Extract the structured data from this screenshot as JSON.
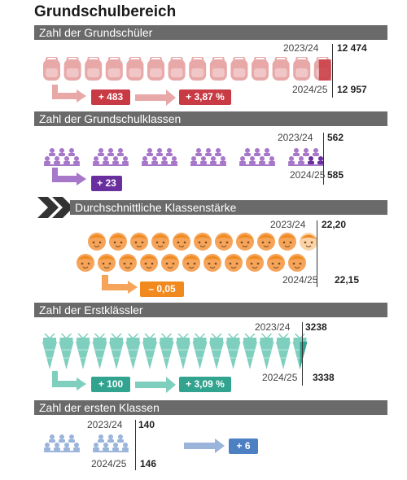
{
  "title": "Grundschulbereich",
  "colors": {
    "pupils": "#e8a8a8",
    "pupils_dark": "#c93b44",
    "classes": "#a777c9",
    "classes_dark": "#6a2f9e",
    "size": "#f5a45a",
    "size_dark": "#f08a1e",
    "first": "#7fcfbf",
    "first_dark": "#31a38f",
    "firstclasses": "#9ab4db",
    "firstclasses_dark": "#4d7fc3",
    "header": "#6a6a6a"
  },
  "sections": {
    "pupils": {
      "heading": "Zahl der Grundschüler",
      "year1": "2023/24",
      "value1": "12 474",
      "year2": "2024/25",
      "value2": "12 957",
      "change_abs": "+ 483",
      "change_pct": "+ 3,87 %",
      "icon": "school-backpack-icon",
      "icon_count": 14
    },
    "classes": {
      "heading": "Zahl der Grundschulklassen",
      "year1": "2023/24",
      "value1": "562",
      "year2": "2024/25",
      "value2": "585",
      "change_abs": "+ 23",
      "icon": "classroom-group-icon",
      "icon_count": 6
    },
    "size": {
      "heading": "Durchschnittliche Klassenstärke",
      "year1": "2023/24",
      "value1": "22,20",
      "year2": "2024/25",
      "value2": "22,15",
      "change_abs": "– 0,05",
      "icon": "child-face-icon"
    },
    "first": {
      "heading": "Zahl der Erstklässler",
      "year1": "2023/24",
      "value1": "3238",
      "year2": "2024/25",
      "value2": "3338",
      "change_abs": "+ 100",
      "change_pct": "+ 3,09 %",
      "icon": "school-cone-icon",
      "icon_count": 16
    },
    "firstclasses": {
      "heading": "Zahl der ersten Klassen",
      "year1": "2023/24",
      "value1": "140",
      "year2": "2024/25",
      "value2": "146",
      "change_abs": "+ 6",
      "icon": "classroom-group-icon",
      "icon_count": 2
    }
  }
}
